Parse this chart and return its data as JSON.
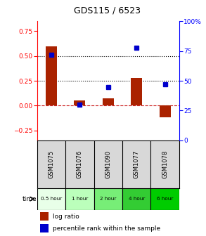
{
  "title": "GDS115 / 6523",
  "samples": [
    "GSM1075",
    "GSM1076",
    "GSM1090",
    "GSM1077",
    "GSM1078"
  ],
  "time_labels": [
    "0.5 hour",
    "1 hour",
    "2 hour",
    "4 hour",
    "6 hour"
  ],
  "time_colors": [
    "#e8ffe8",
    "#bbffbb",
    "#77ee77",
    "#33cc33",
    "#00cc00"
  ],
  "log_ratios": [
    0.6,
    0.05,
    0.07,
    0.28,
    -0.12
  ],
  "percentile_ranks": [
    72,
    30,
    45,
    78,
    47
  ],
  "bar_color": "#aa2200",
  "dot_color": "#0000cc",
  "ylim_left": [
    -0.35,
    0.85
  ],
  "ylim_right": [
    0,
    100
  ],
  "yticks_left": [
    -0.25,
    0.0,
    0.25,
    0.5,
    0.75
  ],
  "yticks_right": [
    0,
    25,
    50,
    75,
    100
  ],
  "hlines": [
    0.25,
    0.5
  ],
  "sample_bg": "#d8d8d8"
}
